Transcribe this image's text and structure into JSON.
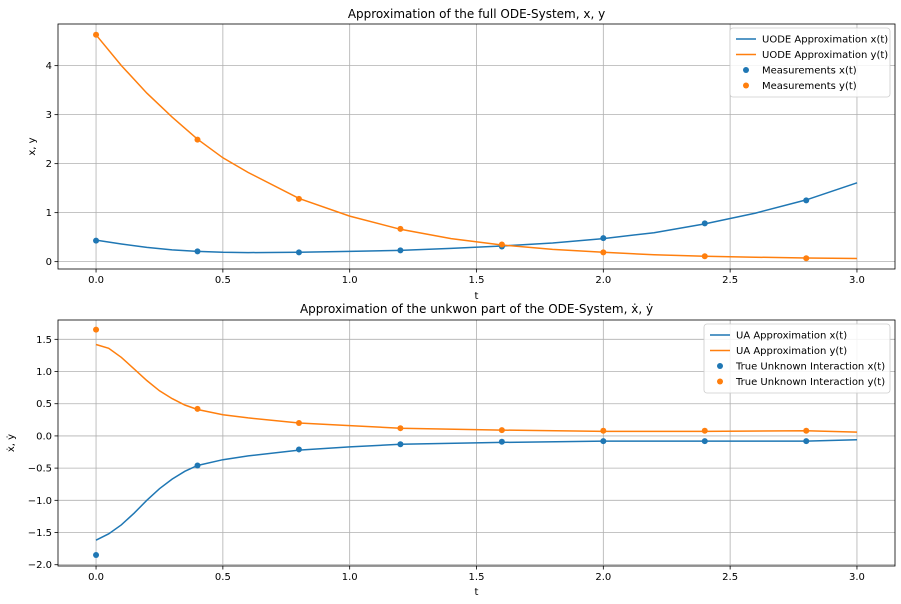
{
  "chart_data": [
    {
      "type": "line",
      "title": "Approximation of the full ODE-System, x, y",
      "xlabel": "t",
      "ylabel": "x, y",
      "xlim": [
        -0.15,
        3.15
      ],
      "ylim": [
        -0.15,
        4.85
      ],
      "xticks": [
        "0.0",
        "0.5",
        "1.0",
        "1.5",
        "2.0",
        "2.5",
        "3.0"
      ],
      "yticks": [
        "0",
        "1",
        "2",
        "3",
        "4"
      ],
      "grid": true,
      "legend_position": "top-right",
      "series": [
        {
          "name": "UODE Approximation x(t)",
          "kind": "line",
          "color": "#1f77b4",
          "x": [
            0.0,
            0.1,
            0.2,
            0.3,
            0.4,
            0.5,
            0.6,
            0.8,
            1.0,
            1.2,
            1.4,
            1.6,
            1.8,
            2.0,
            2.2,
            2.4,
            2.6,
            2.8,
            3.0
          ],
          "y": [
            0.44,
            0.36,
            0.29,
            0.24,
            0.21,
            0.19,
            0.185,
            0.19,
            0.21,
            0.23,
            0.27,
            0.32,
            0.38,
            0.47,
            0.59,
            0.77,
            0.99,
            1.26,
            1.61
          ]
        },
        {
          "name": "UODE Approximation y(t)",
          "kind": "line",
          "color": "#ff7f0e",
          "x": [
            0.0,
            0.1,
            0.2,
            0.3,
            0.4,
            0.5,
            0.6,
            0.8,
            1.0,
            1.2,
            1.4,
            1.6,
            1.8,
            2.0,
            2.2,
            2.4,
            2.6,
            2.8,
            3.0
          ],
          "y": [
            4.63,
            4.0,
            3.44,
            2.95,
            2.5,
            2.12,
            1.82,
            1.29,
            0.93,
            0.66,
            0.47,
            0.34,
            0.25,
            0.19,
            0.14,
            0.11,
            0.09,
            0.075,
            0.065
          ]
        },
        {
          "name": "Measurements x(t)",
          "kind": "scatter",
          "color": "#1f77b4",
          "x": [
            0.0,
            0.4,
            0.8,
            1.2,
            1.6,
            2.0,
            2.4,
            2.8
          ],
          "y": [
            0.43,
            0.21,
            0.19,
            0.23,
            0.31,
            0.48,
            0.78,
            1.25
          ]
        },
        {
          "name": "Measurements y(t)",
          "kind": "scatter",
          "color": "#ff7f0e",
          "x": [
            0.0,
            0.4,
            0.8,
            1.2,
            1.6,
            2.0,
            2.4,
            2.8
          ],
          "y": [
            4.63,
            2.49,
            1.28,
            0.67,
            0.35,
            0.19,
            0.11,
            0.07
          ]
        }
      ]
    },
    {
      "type": "line",
      "title": "Approximation of the unkwon part of the ODE-System, ẋ, ẏ",
      "xlabel": "t",
      "ylabel": "ẋ, ẏ",
      "xlim": [
        -0.15,
        3.15
      ],
      "ylim": [
        -2.02,
        1.8
      ],
      "xticks": [
        "0.0",
        "0.5",
        "1.0",
        "1.5",
        "2.0",
        "2.5",
        "3.0"
      ],
      "yticks": [
        "−2.0",
        "−1.5",
        "−1.0",
        "−0.5",
        "0.0",
        "0.5",
        "1.0",
        "1.5"
      ],
      "grid": true,
      "legend_position": "top-right",
      "series": [
        {
          "name": "UA Approximation x(t)",
          "kind": "line",
          "color": "#1f77b4",
          "x": [
            0.0,
            0.05,
            0.1,
            0.15,
            0.2,
            0.25,
            0.3,
            0.35,
            0.4,
            0.5,
            0.6,
            0.8,
            1.0,
            1.2,
            1.6,
            2.0,
            2.4,
            2.8,
            3.0
          ],
          "y": [
            -1.62,
            -1.52,
            -1.38,
            -1.2,
            -1.0,
            -0.82,
            -0.67,
            -0.55,
            -0.46,
            -0.37,
            -0.31,
            -0.22,
            -0.17,
            -0.13,
            -0.1,
            -0.08,
            -0.08,
            -0.08,
            -0.06
          ]
        },
        {
          "name": "UA Approximation y(t)",
          "kind": "line",
          "color": "#ff7f0e",
          "x": [
            0.0,
            0.05,
            0.1,
            0.15,
            0.2,
            0.25,
            0.3,
            0.35,
            0.4,
            0.5,
            0.6,
            0.8,
            1.0,
            1.2,
            1.6,
            2.0,
            2.4,
            2.8,
            3.0
          ],
          "y": [
            1.42,
            1.36,
            1.22,
            1.04,
            0.86,
            0.7,
            0.58,
            0.48,
            0.41,
            0.33,
            0.28,
            0.2,
            0.16,
            0.12,
            0.09,
            0.07,
            0.07,
            0.08,
            0.06
          ]
        },
        {
          "name": "True Unknown Interaction x(t)",
          "kind": "scatter",
          "color": "#1f77b4",
          "x": [
            0.0,
            0.4,
            0.8,
            1.2,
            1.6,
            2.0,
            2.4,
            2.8
          ],
          "y": [
            -1.85,
            -0.46,
            -0.21,
            -0.13,
            -0.09,
            -0.08,
            -0.08,
            -0.08
          ]
        },
        {
          "name": "True Unknown Interaction y(t)",
          "kind": "scatter",
          "color": "#ff7f0e",
          "x": [
            0.0,
            0.4,
            0.8,
            1.2,
            1.6,
            2.0,
            2.4,
            2.8
          ],
          "y": [
            1.65,
            0.42,
            0.2,
            0.12,
            0.09,
            0.08,
            0.08,
            0.08
          ]
        }
      ]
    }
  ]
}
